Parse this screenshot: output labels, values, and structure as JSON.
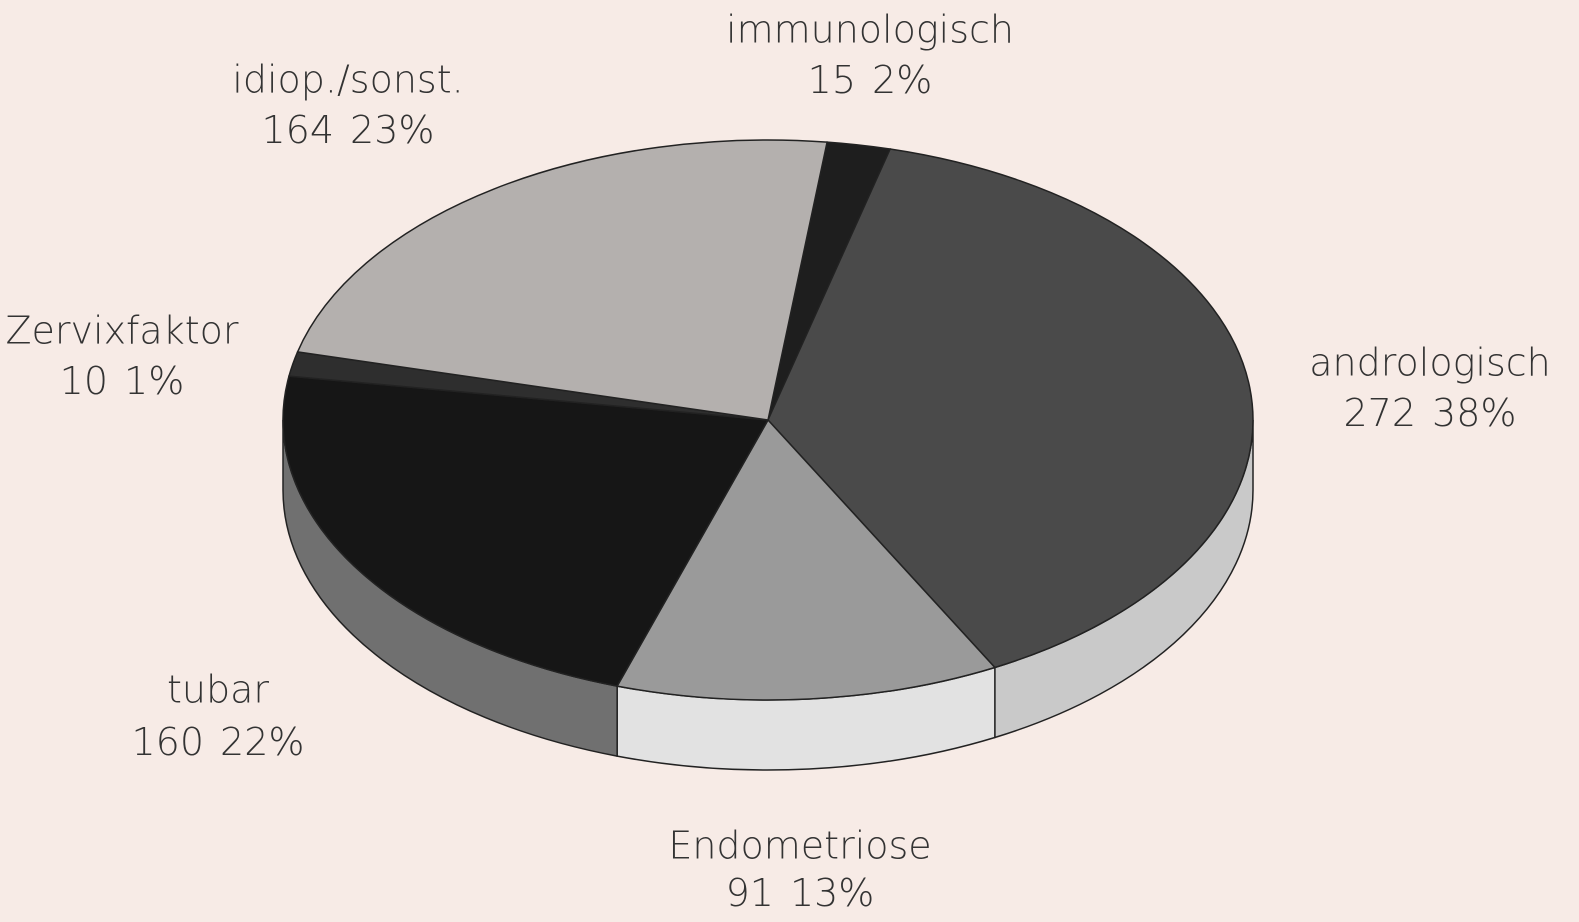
{
  "chart_data": {
    "type": "pie3d",
    "categories": [
      "immunologisch",
      "andrologisch",
      "Endometriose",
      "tubar",
      "Zervixfaktor",
      "idiop./sonst."
    ],
    "values": [
      15,
      272,
      91,
      160,
      10,
      164
    ],
    "percents": [
      2,
      38,
      13,
      22,
      1,
      23
    ],
    "percent_labels": [
      "2%",
      "38%",
      "13%",
      "22%",
      "1%",
      "23%"
    ],
    "colors": [
      "#1e1e1e",
      "#4a4a4a",
      "#9a9a9a",
      "#161616",
      "#2e2e2e",
      "#b4b0ae"
    ],
    "side_colors": [
      "#555555",
      "#c9c9c9",
      "#e2e2e2",
      "#707070",
      "#606060",
      "#cfcfcf"
    ]
  }
}
